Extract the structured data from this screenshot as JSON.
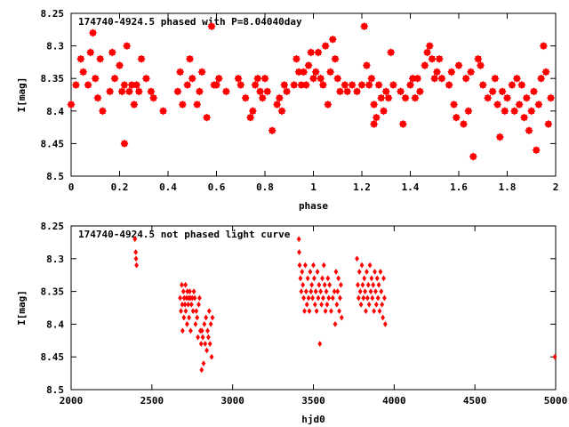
{
  "chart_data": [
    {
      "type": "scatter",
      "title": "174740-4924.5 phased with P=8.04040day",
      "xlabel": "phase",
      "ylabel": "I[mag]",
      "xlim": [
        0,
        2
      ],
      "ylim": [
        8.5,
        8.25
      ],
      "y_inverted": true,
      "grid": false,
      "xticks": [
        "0",
        "0.2",
        "0.4",
        "0.6",
        "0.8",
        "1",
        "1.2",
        "1.4",
        "1.6",
        "1.8",
        "2"
      ],
      "yticks": [
        "8.25",
        "8.3",
        "8.35",
        "8.4",
        "8.45",
        "8.5"
      ],
      "marker_color": "#ff0000",
      "points": [
        [
          0.0,
          8.39
        ],
        [
          0.02,
          8.36
        ],
        [
          0.04,
          8.32
        ],
        [
          0.05,
          8.34
        ],
        [
          0.07,
          8.36
        ],
        [
          0.08,
          8.31
        ],
        [
          0.09,
          8.28
        ],
        [
          0.1,
          8.35
        ],
        [
          0.11,
          8.38
        ],
        [
          0.12,
          8.32
        ],
        [
          0.13,
          8.4
        ],
        [
          0.16,
          8.37
        ],
        [
          0.17,
          8.31
        ],
        [
          0.18,
          8.35
        ],
        [
          0.2,
          8.33
        ],
        [
          0.21,
          8.37
        ],
        [
          0.22,
          8.36
        ],
        [
          0.22,
          8.45
        ],
        [
          0.23,
          8.3
        ],
        [
          0.24,
          8.37
        ],
        [
          0.25,
          8.36
        ],
        [
          0.26,
          8.39
        ],
        [
          0.27,
          8.36
        ],
        [
          0.28,
          8.37
        ],
        [
          0.29,
          8.32
        ],
        [
          0.31,
          8.35
        ],
        [
          0.33,
          8.37
        ],
        [
          0.34,
          8.38
        ],
        [
          0.38,
          8.4
        ],
        [
          0.44,
          8.37
        ],
        [
          0.45,
          8.34
        ],
        [
          0.46,
          8.39
        ],
        [
          0.48,
          8.36
        ],
        [
          0.49,
          8.32
        ],
        [
          0.5,
          8.35
        ],
        [
          0.52,
          8.39
        ],
        [
          0.53,
          8.37
        ],
        [
          0.54,
          8.34
        ],
        [
          0.56,
          8.41
        ],
        [
          0.58,
          8.27
        ],
        [
          0.59,
          8.36
        ],
        [
          0.6,
          8.36
        ],
        [
          0.61,
          8.35
        ],
        [
          0.64,
          8.37
        ],
        [
          0.69,
          8.35
        ],
        [
          0.7,
          8.36
        ],
        [
          0.72,
          8.38
        ],
        [
          0.74,
          8.41
        ],
        [
          0.75,
          8.4
        ],
        [
          0.76,
          8.36
        ],
        [
          0.77,
          8.35
        ],
        [
          0.78,
          8.37
        ],
        [
          0.79,
          8.38
        ],
        [
          0.8,
          8.35
        ],
        [
          0.81,
          8.37
        ],
        [
          0.83,
          8.43
        ],
        [
          0.85,
          8.39
        ],
        [
          0.86,
          8.38
        ],
        [
          0.87,
          8.4
        ],
        [
          0.88,
          8.36
        ],
        [
          0.89,
          8.37
        ],
        [
          0.92,
          8.36
        ],
        [
          0.93,
          8.32
        ],
        [
          0.94,
          8.34
        ],
        [
          0.95,
          8.36
        ],
        [
          0.96,
          8.34
        ],
        [
          0.97,
          8.36
        ],
        [
          0.98,
          8.33
        ],
        [
          0.99,
          8.31
        ],
        [
          1.0,
          8.35
        ],
        [
          1.01,
          8.34
        ],
        [
          1.02,
          8.31
        ],
        [
          1.03,
          8.35
        ],
        [
          1.04,
          8.36
        ],
        [
          1.05,
          8.3
        ],
        [
          1.06,
          8.39
        ],
        [
          1.07,
          8.34
        ],
        [
          1.08,
          8.29
        ],
        [
          1.09,
          8.32
        ],
        [
          1.1,
          8.35
        ],
        [
          1.11,
          8.37
        ],
        [
          1.13,
          8.36
        ],
        [
          1.14,
          8.37
        ],
        [
          1.16,
          8.36
        ],
        [
          1.18,
          8.37
        ],
        [
          1.2,
          8.36
        ],
        [
          1.21,
          8.27
        ],
        [
          1.22,
          8.33
        ],
        [
          1.23,
          8.36
        ],
        [
          1.24,
          8.35
        ],
        [
          1.25,
          8.39
        ],
        [
          1.25,
          8.42
        ],
        [
          1.26,
          8.41
        ],
        [
          1.27,
          8.36
        ],
        [
          1.28,
          8.38
        ],
        [
          1.29,
          8.4
        ],
        [
          1.3,
          8.37
        ],
        [
          1.31,
          8.38
        ],
        [
          1.32,
          8.31
        ],
        [
          1.33,
          8.36
        ],
        [
          1.36,
          8.37
        ],
        [
          1.37,
          8.42
        ],
        [
          1.38,
          8.38
        ],
        [
          1.4,
          8.36
        ],
        [
          1.41,
          8.35
        ],
        [
          1.42,
          8.38
        ],
        [
          1.43,
          8.35
        ],
        [
          1.44,
          8.37
        ],
        [
          1.46,
          8.33
        ],
        [
          1.47,
          8.31
        ],
        [
          1.48,
          8.3
        ],
        [
          1.49,
          8.32
        ],
        [
          1.5,
          8.35
        ],
        [
          1.51,
          8.34
        ],
        [
          1.52,
          8.32
        ],
        [
          1.53,
          8.35
        ],
        [
          1.56,
          8.36
        ],
        [
          1.57,
          8.34
        ],
        [
          1.58,
          8.39
        ],
        [
          1.59,
          8.41
        ],
        [
          1.6,
          8.33
        ],
        [
          1.62,
          8.42
        ],
        [
          1.63,
          8.35
        ],
        [
          1.64,
          8.4
        ],
        [
          1.65,
          8.34
        ],
        [
          1.66,
          8.47
        ],
        [
          1.68,
          8.32
        ],
        [
          1.69,
          8.33
        ],
        [
          1.7,
          8.36
        ],
        [
          1.72,
          8.38
        ],
        [
          1.74,
          8.37
        ],
        [
          1.75,
          8.35
        ],
        [
          1.76,
          8.39
        ],
        [
          1.77,
          8.44
        ],
        [
          1.78,
          8.37
        ],
        [
          1.79,
          8.4
        ],
        [
          1.8,
          8.38
        ],
        [
          1.82,
          8.36
        ],
        [
          1.83,
          8.4
        ],
        [
          1.84,
          8.35
        ],
        [
          1.85,
          8.39
        ],
        [
          1.86,
          8.36
        ],
        [
          1.87,
          8.41
        ],
        [
          1.88,
          8.38
        ],
        [
          1.89,
          8.43
        ],
        [
          1.9,
          8.4
        ],
        [
          1.91,
          8.37
        ],
        [
          1.92,
          8.46
        ],
        [
          1.93,
          8.39
        ],
        [
          1.94,
          8.35
        ],
        [
          1.95,
          8.3
        ],
        [
          1.96,
          8.34
        ],
        [
          1.97,
          8.42
        ],
        [
          1.98,
          8.38
        ]
      ]
    },
    {
      "type": "scatter",
      "title": "174740-4924.5 not phased light curve",
      "xlabel": "hjd0",
      "ylabel": "I[mag]",
      "xlim": [
        2000,
        5000
      ],
      "ylim": [
        8.5,
        8.25
      ],
      "y_inverted": true,
      "grid": false,
      "xticks": [
        "2000",
        "2500",
        "3000",
        "3500",
        "4000",
        "4500",
        "5000"
      ],
      "yticks": [
        "8.25",
        "8.3",
        "8.35",
        "8.4",
        "8.45",
        "8.5"
      ],
      "marker_color": "#ff0000",
      "points": [
        [
          2395,
          8.27
        ],
        [
          2400,
          8.29
        ],
        [
          2402,
          8.3
        ],
        [
          2405,
          8.31
        ],
        [
          2675,
          8.36
        ],
        [
          2680,
          8.38
        ],
        [
          2685,
          8.34
        ],
        [
          2688,
          8.37
        ],
        [
          2690,
          8.41
        ],
        [
          2695,
          8.35
        ],
        [
          2698,
          8.39
        ],
        [
          2700,
          8.36
        ],
        [
          2705,
          8.37
        ],
        [
          2708,
          8.34
        ],
        [
          2710,
          8.38
        ],
        [
          2715,
          8.36
        ],
        [
          2718,
          8.4
        ],
        [
          2720,
          8.35
        ],
        [
          2725,
          8.37
        ],
        [
          2728,
          8.36
        ],
        [
          2730,
          8.39
        ],
        [
          2735,
          8.35
        ],
        [
          2738,
          8.36
        ],
        [
          2740,
          8.41
        ],
        [
          2745,
          8.37
        ],
        [
          2750,
          8.36
        ],
        [
          2755,
          8.38
        ],
        [
          2760,
          8.35
        ],
        [
          2765,
          8.36
        ],
        [
          2770,
          8.4
        ],
        [
          2775,
          8.38
        ],
        [
          2780,
          8.39
        ],
        [
          2785,
          8.42
        ],
        [
          2790,
          8.37
        ],
        [
          2795,
          8.36
        ],
        [
          2800,
          8.41
        ],
        [
          2805,
          8.43
        ],
        [
          2808,
          8.47
        ],
        [
          2810,
          8.41
        ],
        [
          2815,
          8.42
        ],
        [
          2820,
          8.46
        ],
        [
          2825,
          8.4
        ],
        [
          2830,
          8.43
        ],
        [
          2835,
          8.39
        ],
        [
          2840,
          8.44
        ],
        [
          2845,
          8.41
        ],
        [
          2850,
          8.42
        ],
        [
          2855,
          8.38
        ],
        [
          2860,
          8.43
        ],
        [
          2865,
          8.4
        ],
        [
          2870,
          8.45
        ],
        [
          2875,
          8.39
        ],
        [
          3410,
          8.27
        ],
        [
          3412,
          8.29
        ],
        [
          3415,
          8.31
        ],
        [
          3420,
          8.33
        ],
        [
          3425,
          8.35
        ],
        [
          3430,
          8.32
        ],
        [
          3435,
          8.34
        ],
        [
          3440,
          8.36
        ],
        [
          3445,
          8.38
        ],
        [
          3450,
          8.31
        ],
        [
          3455,
          8.35
        ],
        [
          3460,
          8.37
        ],
        [
          3465,
          8.33
        ],
        [
          3470,
          8.36
        ],
        [
          3475,
          8.38
        ],
        [
          3480,
          8.32
        ],
        [
          3485,
          8.35
        ],
        [
          3490,
          8.34
        ],
        [
          3495,
          8.36
        ],
        [
          3500,
          8.31
        ],
        [
          3505,
          8.33
        ],
        [
          3510,
          8.37
        ],
        [
          3515,
          8.35
        ],
        [
          3520,
          8.38
        ],
        [
          3525,
          8.32
        ],
        [
          3530,
          8.36
        ],
        [
          3535,
          8.34
        ],
        [
          3540,
          8.43
        ],
        [
          3545,
          8.35
        ],
        [
          3550,
          8.37
        ],
        [
          3555,
          8.33
        ],
        [
          3560,
          8.36
        ],
        [
          3565,
          8.31
        ],
        [
          3570,
          8.34
        ],
        [
          3575,
          8.38
        ],
        [
          3580,
          8.35
        ],
        [
          3585,
          8.37
        ],
        [
          3590,
          8.33
        ],
        [
          3595,
          8.36
        ],
        [
          3600,
          8.34
        ],
        [
          3610,
          8.38
        ],
        [
          3620,
          8.36
        ],
        [
          3630,
          8.35
        ],
        [
          3635,
          8.4
        ],
        [
          3640,
          8.32
        ],
        [
          3645,
          8.37
        ],
        [
          3650,
          8.35
        ],
        [
          3655,
          8.33
        ],
        [
          3660,
          8.38
        ],
        [
          3665,
          8.36
        ],
        [
          3670,
          8.34
        ],
        [
          3675,
          8.39
        ],
        [
          3770,
          8.3
        ],
        [
          3775,
          8.34
        ],
        [
          3780,
          8.36
        ],
        [
          3785,
          8.32
        ],
        [
          3790,
          8.35
        ],
        [
          3795,
          8.37
        ],
        [
          3800,
          8.31
        ],
        [
          3805,
          8.34
        ],
        [
          3810,
          8.36
        ],
        [
          3815,
          8.33
        ],
        [
          3820,
          8.35
        ],
        [
          3825,
          8.38
        ],
        [
          3830,
          8.32
        ],
        [
          3835,
          8.36
        ],
        [
          3840,
          8.34
        ],
        [
          3845,
          8.37
        ],
        [
          3850,
          8.31
        ],
        [
          3855,
          8.35
        ],
        [
          3860,
          8.33
        ],
        [
          3865,
          8.36
        ],
        [
          3870,
          8.34
        ],
        [
          3875,
          8.38
        ],
        [
          3880,
          8.32
        ],
        [
          3885,
          8.35
        ],
        [
          3890,
          8.37
        ],
        [
          3895,
          8.33
        ],
        [
          3900,
          8.36
        ],
        [
          3905,
          8.34
        ],
        [
          3910,
          8.38
        ],
        [
          3915,
          8.32
        ],
        [
          3920,
          8.35
        ],
        [
          3925,
          8.37
        ],
        [
          3930,
          8.39
        ],
        [
          3935,
          8.33
        ],
        [
          3940,
          8.36
        ],
        [
          3945,
          8.4
        ],
        [
          4995,
          8.45
        ]
      ]
    }
  ]
}
